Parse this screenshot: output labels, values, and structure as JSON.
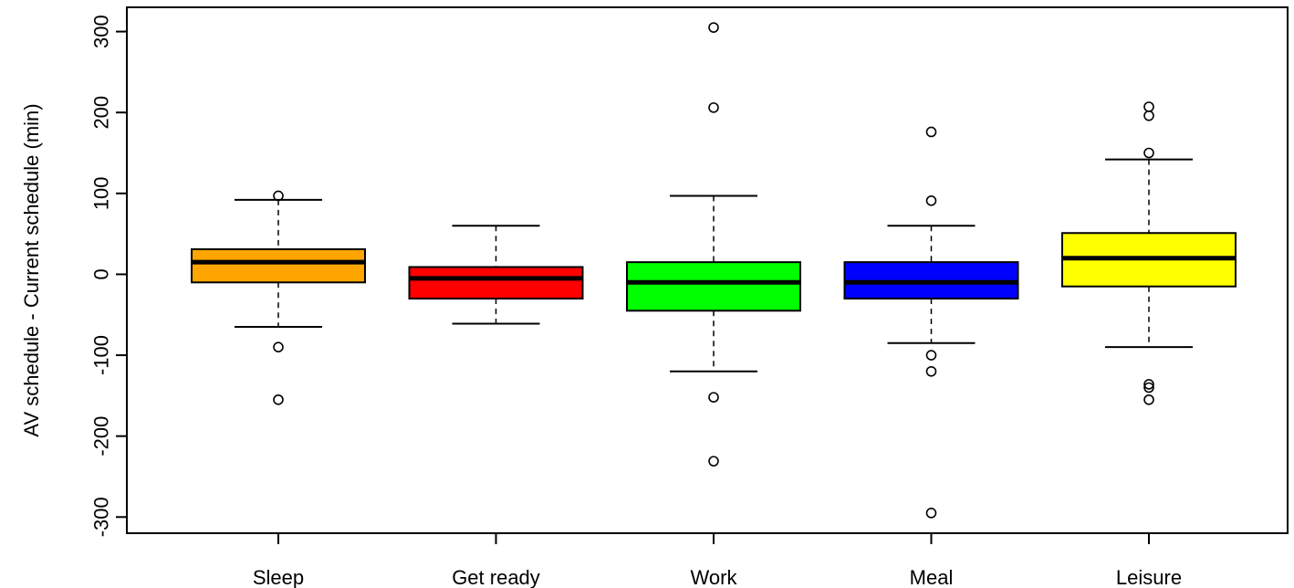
{
  "chart_data": {
    "type": "boxplot",
    "title": "",
    "xlabel": "",
    "ylabel": "AV schedule - Current schedule (min)",
    "ylim": [
      -320,
      330
    ],
    "yticks": [
      -300,
      -200,
      -100,
      0,
      100,
      200,
      300
    ],
    "ytick_labels": [
      "-300",
      "-200",
      "-100",
      "0",
      "100",
      "200",
      "300"
    ],
    "grid": false,
    "legend": "none",
    "categories": [
      "Sleep",
      "Get ready",
      "Work",
      "Meal",
      "Leisure"
    ],
    "boxes": [
      {
        "category": "Sleep",
        "color": "#FFA500",
        "whisker_low": -65,
        "q1": -10,
        "median": 15,
        "q3": 31,
        "whisker_high": 92,
        "outliers": [
          97,
          -90,
          -155
        ]
      },
      {
        "category": "Get ready",
        "color": "#FF0000",
        "whisker_low": -61,
        "q1": -30,
        "median": -5,
        "q3": 9,
        "whisker_high": 60,
        "outliers": []
      },
      {
        "category": "Work",
        "color": "#00FF00",
        "whisker_low": -120,
        "q1": -45,
        "median": -10,
        "q3": 15,
        "whisker_high": 97,
        "outliers": [
          305,
          206,
          -152,
          -231
        ]
      },
      {
        "category": "Meal",
        "color": "#0000FF",
        "whisker_low": -85,
        "q1": -30,
        "median": -10,
        "q3": 15,
        "whisker_high": 60,
        "outliers": [
          176,
          91,
          -100,
          -120,
          -295
        ]
      },
      {
        "category": "Leisure",
        "color": "#FFFF00",
        "whisker_low": -90,
        "q1": -15,
        "median": 20,
        "q3": 51,
        "whisker_high": 142,
        "outliers": [
          207,
          196,
          150,
          -136,
          -140,
          -155
        ]
      }
    ]
  }
}
